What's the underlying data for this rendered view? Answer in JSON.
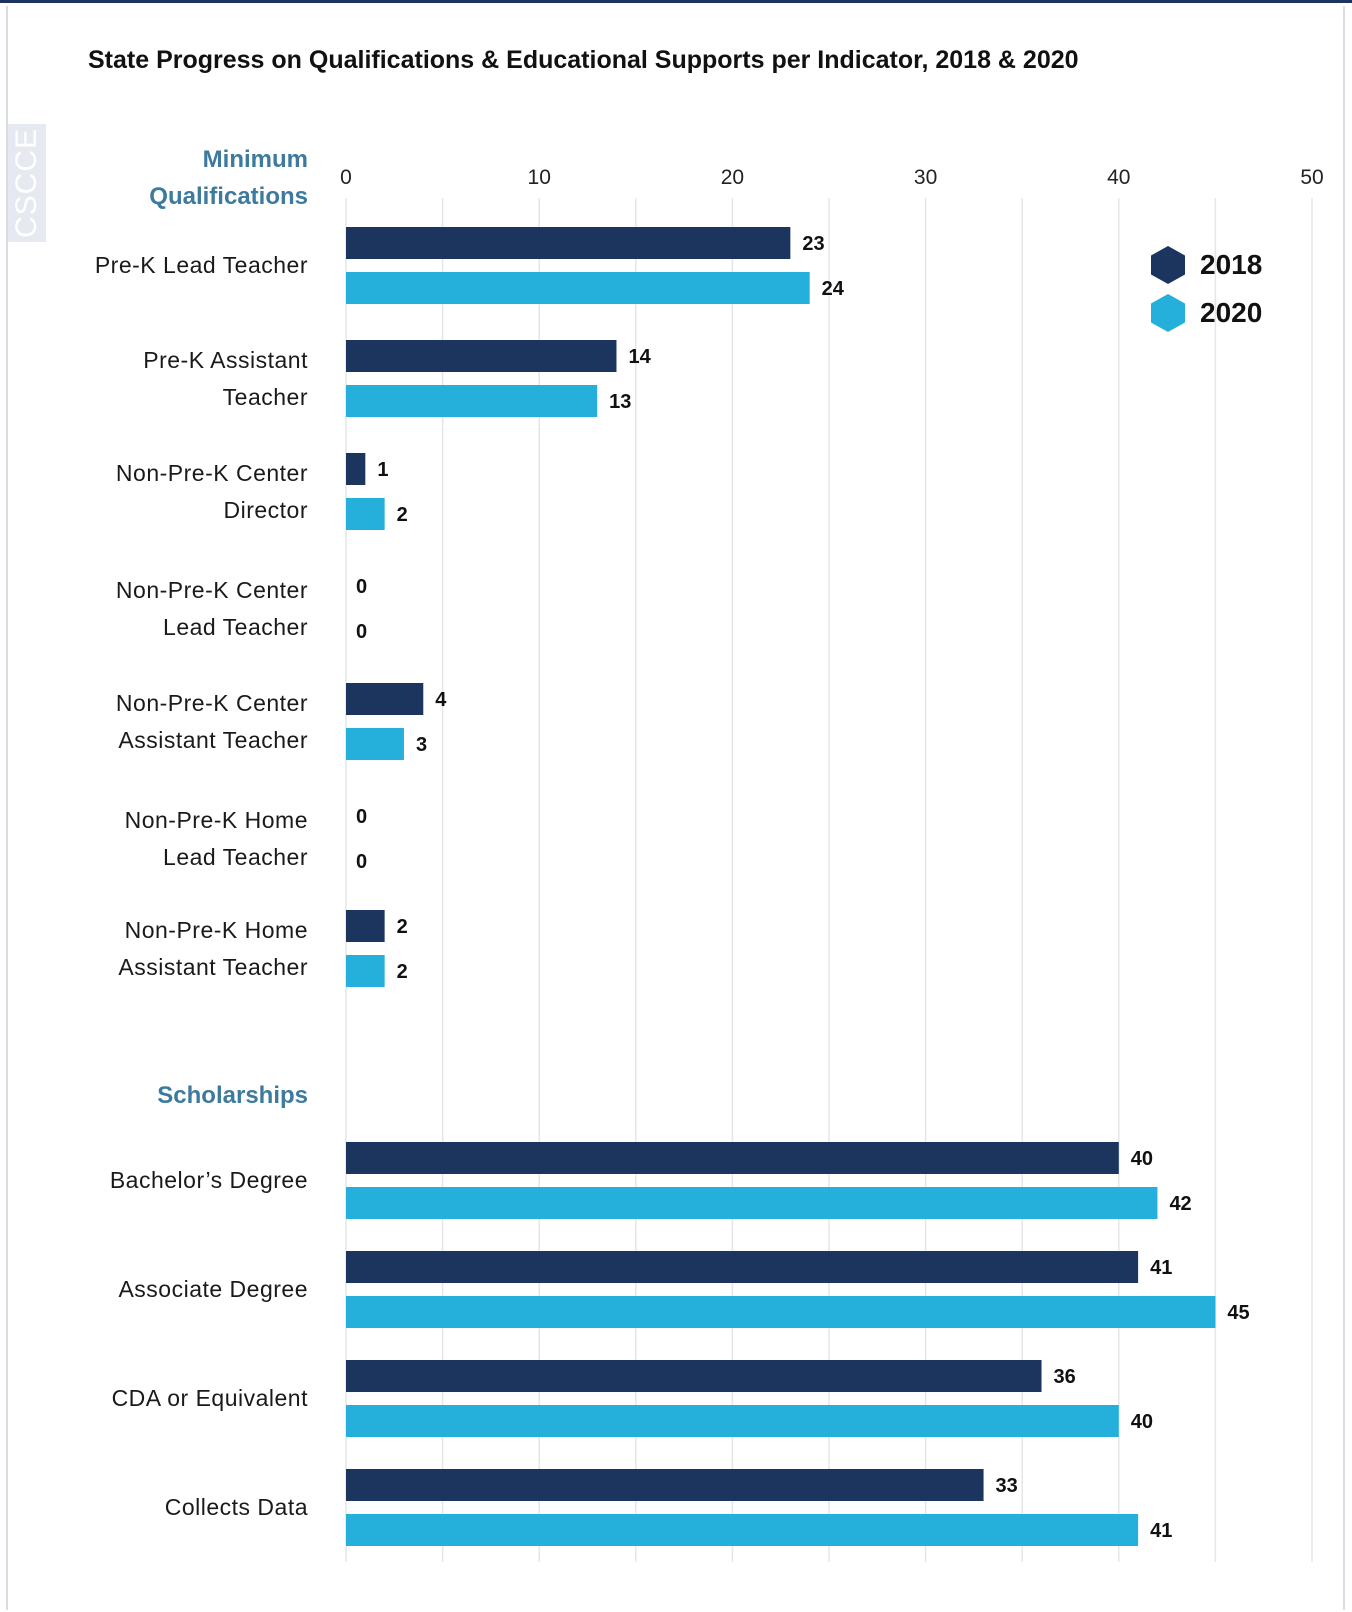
{
  "title": "State Progress on Qualifications & Educational Supports per Indicator, 2018 & 2020",
  "brand": "CSCCE",
  "colors": {
    "s2018": "#1b355e",
    "s2020": "#25afdb",
    "section": "#3d7a9e",
    "grid": "#e3e6ea"
  },
  "legend": [
    {
      "label": "2018",
      "icon": "hexagon-icon"
    },
    {
      "label": "2020",
      "icon": "hexagon-icon"
    }
  ],
  "sections": [
    {
      "label": "Minimum Qualifications",
      "categories": [
        "Pre-K Lead Teacher",
        "Pre-K Assistant Teacher",
        "Non-Pre-K Center Director",
        "Non-Pre-K Center Lead Teacher",
        "Non-Pre-K Center Assistant Teacher",
        "Non-Pre-K Home Lead Teacher",
        "Non-Pre-K Home Assistant Teacher"
      ]
    },
    {
      "label": "Scholarships",
      "categories": [
        "Bachelor’s Degree",
        "Associate Degree",
        "CDA or Equivalent",
        "Collects Data"
      ]
    }
  ],
  "chart_data": {
    "type": "bar",
    "orientation": "horizontal",
    "title": "State Progress on Qualifications & Educational Supports per Indicator, 2018 & 2020",
    "categories": [
      "Pre-K Lead Teacher",
      "Pre-K Assistant Teacher",
      "Non-Pre-K Center Director",
      "Non-Pre-K Center Lead Teacher",
      "Non-Pre-K Center Assistant Teacher",
      "Non-Pre-K Home Lead Teacher",
      "Non-Pre-K Home Assistant Teacher",
      "Bachelor’s Degree",
      "Associate Degree",
      "CDA or Equivalent",
      "Collects Data"
    ],
    "series": [
      {
        "name": "2018",
        "values": [
          23,
          14,
          1,
          0,
          4,
          0,
          2,
          40,
          41,
          36,
          33
        ]
      },
      {
        "name": "2020",
        "values": [
          24,
          13,
          2,
          0,
          3,
          0,
          2,
          42,
          45,
          40,
          41
        ]
      }
    ],
    "xlim": [
      0,
      50
    ],
    "xticks": [
      0,
      10,
      20,
      30,
      40,
      50
    ],
    "grid": true,
    "legend_position": "top-right",
    "xaxis_position": "top"
  }
}
